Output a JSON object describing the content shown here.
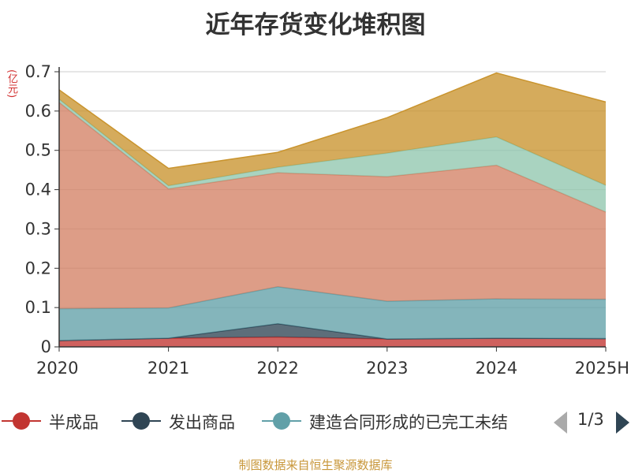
{
  "title": "近年存货变化堆积图",
  "unit_label": "(亿元)",
  "source": "制图数据来自恒生聚源数据库",
  "legend": {
    "page": "1/3",
    "items": [
      {
        "label": "半成品",
        "color": "#c23531"
      },
      {
        "label": "发出商品",
        "color": "#2f4554"
      },
      {
        "label": "建造合同形成的已完工未结",
        "color": "#61a0a8"
      }
    ]
  },
  "chart_data": {
    "type": "area",
    "stacked": true,
    "title": "近年存货变化堆积图",
    "ylabel": "(亿元)",
    "categories": [
      "2020",
      "2021",
      "2022",
      "2023",
      "2024",
      "2025H"
    ],
    "ylim": [
      0,
      0.7
    ],
    "yticks": [
      "0",
      "0.1",
      "0.2",
      "0.3",
      "0.4",
      "0.5",
      "0.6",
      "0.7"
    ],
    "grid": true,
    "series": [
      {
        "name": "半成品",
        "color": "#c23531",
        "values": [
          0.016,
          0.022,
          0.025,
          0.02,
          0.022,
          0.021
        ]
      },
      {
        "name": "发出商品",
        "color": "#2f4554",
        "values": [
          0.0,
          0.0,
          0.034,
          0.0,
          0.0,
          0.0
        ]
      },
      {
        "name": "建造合同形成的已完工未结",
        "color": "#61a0a8",
        "values": [
          0.081,
          0.077,
          0.094,
          0.096,
          0.1,
          0.1
        ]
      },
      {
        "color": "#d48265",
        "values": [
          0.525,
          0.303,
          0.29,
          0.317,
          0.34,
          0.222
        ]
      },
      {
        "color": "#91c7ae",
        "values": [
          0.008,
          0.008,
          0.014,
          0.06,
          0.072,
          0.068
        ]
      },
      {
        "color": "#c9942e",
        "values": [
          0.024,
          0.044,
          0.038,
          0.09,
          0.163,
          0.212
        ]
      }
    ]
  }
}
